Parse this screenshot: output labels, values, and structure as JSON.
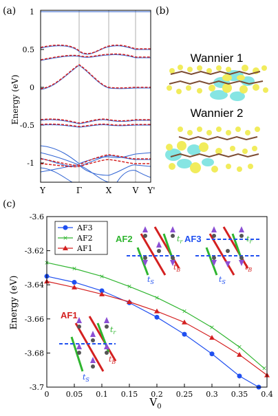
{
  "panel_a": {
    "label": "(a)",
    "ylabel": "Energy (eV)",
    "yticks": [
      "1",
      "0.5",
      "0",
      "-0.5",
      "-1"
    ],
    "kpoints": [
      "Y",
      "Γ",
      "X",
      "V",
      "Y'"
    ]
  },
  "panel_b": {
    "label": "(b)",
    "wannier1": "Wannier 1",
    "wannier2": "Wannier 2"
  },
  "panel_c": {
    "label": "(c)",
    "ylabel": "Energy (eV)",
    "xlabel": "V",
    "xlabel_sub": "0",
    "legend": [
      "AF3",
      "AF2",
      "AF1"
    ],
    "inset_labels": [
      "AF2",
      "AF3",
      "AF1"
    ],
    "bond_labels": {
      "r": "t",
      "r_sub": "r",
      "b": "t",
      "b_sub": "B",
      "s": "t",
      "s_sub": "S"
    }
  },
  "colors": {
    "dft": "#2f63d3",
    "wannier": "#d42020",
    "af3": "#1f4ff0",
    "af2": "#2fb52f",
    "af1": "#d42020",
    "lobe_yellow": "#f1ec5c",
    "lobe_cyan": "#79e3e0"
  },
  "chart_data": {
    "type": "scatter",
    "xlim": [
      0,
      0.4
    ],
    "ylim": [
      -3.7,
      -3.6
    ],
    "xticks": [
      "0",
      "0.05",
      "0.1",
      "0.15",
      "0.2",
      "0.25",
      "0.3",
      "0.35",
      "0.4"
    ],
    "yticks": [
      "-3.6",
      "-3.62",
      "-3.64",
      "-3.66",
      "-3.68",
      "-3.7"
    ],
    "series": [
      {
        "name": "AF3",
        "x": [
          0,
          0.05,
          0.1,
          0.15,
          0.2,
          0.25,
          0.3,
          0.35,
          0.385
        ],
        "y": [
          -3.635,
          -3.6385,
          -3.6435,
          -3.6505,
          -3.659,
          -3.669,
          -3.6805,
          -3.6935,
          -3.7
        ]
      },
      {
        "name": "AF2",
        "x": [
          0,
          0.05,
          0.1,
          0.15,
          0.2,
          0.25,
          0.3,
          0.35,
          0.395
        ],
        "y": [
          -3.627,
          -3.6305,
          -3.635,
          -3.641,
          -3.6475,
          -3.6555,
          -3.665,
          -3.6765,
          -3.689
        ]
      },
      {
        "name": "AF1",
        "x": [
          0,
          0.05,
          0.1,
          0.15,
          0.2,
          0.25,
          0.3,
          0.35,
          0.4
        ],
        "y": [
          -3.638,
          -3.6415,
          -3.6455,
          -3.65,
          -3.6555,
          -3.662,
          -3.671,
          -3.681,
          -3.693
        ]
      }
    ]
  }
}
